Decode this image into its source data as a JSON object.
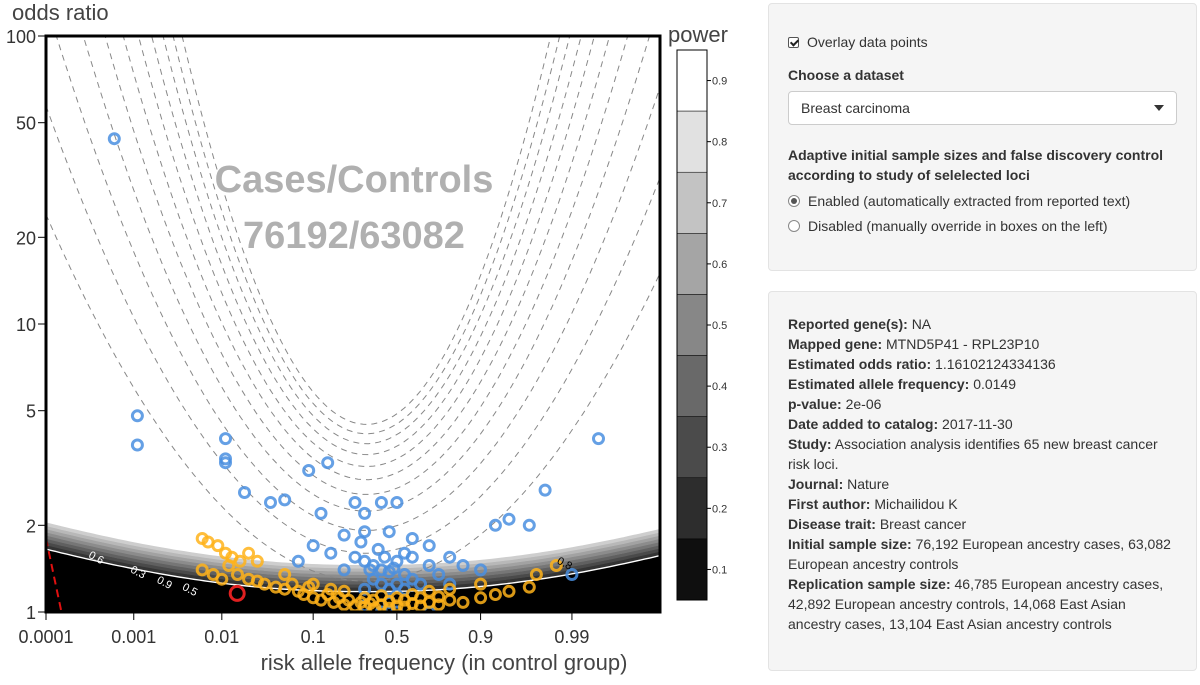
{
  "plot": {
    "ylabel": "odds ratio",
    "xlabel": "risk allele frequency (in control group)",
    "legend_title": "power",
    "overlay_line1": "Cases/Controls",
    "overlay_line2": "76192/63082",
    "y_ticks": [
      "100",
      "50",
      "20",
      "10",
      "5",
      "2",
      "1"
    ],
    "x_ticks": [
      "0.0001",
      "0.001",
      "0.01",
      "0.1",
      "0.5",
      "0.9",
      "0.99"
    ],
    "legend_ticks": [
      "0.9",
      "0.8",
      "0.7",
      "0.6",
      "0.5",
      "0.4",
      "0.3",
      "0.2",
      "0.1"
    ],
    "contour_labels": [
      "0.6",
      "0.3",
      "0.9",
      "0.5",
      "0.8"
    ],
    "colors": {
      "low_power": "#000000",
      "high_power": "#ffffff",
      "points_blue": "#4a8fe0",
      "points_orange": "#ffb31a",
      "highlight": "#e02020",
      "threshold": "#e01010"
    }
  },
  "chart_data": {
    "type": "scatter",
    "title": "",
    "xlabel": "risk allele frequency (in control group)",
    "ylabel": "odds ratio",
    "x_scale": "logit",
    "y_scale": "log",
    "xlim": [
      0.0001,
      0.999
    ],
    "ylim": [
      1,
      100
    ],
    "legend": "power (grayscale, right)",
    "highlight_point": {
      "x": 0.0149,
      "y": 1.161
    },
    "series": [
      {
        "name": "",
        "color": "#4a8fe0",
        "points": [
          [
            0.0006,
            44
          ],
          [
            0.0011,
            4.8
          ],
          [
            0.0011,
            3.8
          ],
          [
            0.011,
            4.0
          ],
          [
            0.011,
            3.4
          ],
          [
            0.011,
            3.3
          ],
          [
            0.018,
            2.6
          ],
          [
            0.035,
            2.4
          ],
          [
            0.05,
            2.45
          ],
          [
            0.09,
            3.1
          ],
          [
            0.14,
            3.3
          ],
          [
            0.25,
            2.4
          ],
          [
            0.4,
            2.4
          ],
          [
            0.5,
            2.4
          ],
          [
            0.3,
            2.2
          ],
          [
            0.12,
            2.2
          ],
          [
            0.2,
            1.85
          ],
          [
            0.3,
            1.9
          ],
          [
            0.45,
            1.9
          ],
          [
            0.6,
            1.8
          ],
          [
            0.7,
            1.7
          ],
          [
            0.8,
            1.55
          ],
          [
            0.85,
            1.45
          ],
          [
            0.9,
            1.4
          ],
          [
            0.93,
            2.0
          ],
          [
            0.95,
            2.1
          ],
          [
            0.97,
            2.0
          ],
          [
            0.995,
            4.0
          ],
          [
            0.98,
            2.65
          ],
          [
            0.99,
            1.35
          ],
          [
            0.25,
            1.55
          ],
          [
            0.3,
            1.5
          ],
          [
            0.35,
            1.45
          ],
          [
            0.4,
            1.4
          ],
          [
            0.45,
            1.38
          ],
          [
            0.5,
            1.5
          ],
          [
            0.55,
            1.35
          ],
          [
            0.6,
            1.3
          ],
          [
            0.65,
            1.25
          ],
          [
            0.35,
            1.3
          ],
          [
            0.4,
            1.25
          ],
          [
            0.45,
            1.2
          ],
          [
            0.5,
            1.25
          ],
          [
            0.55,
            1.2
          ],
          [
            0.3,
            1.2
          ],
          [
            0.2,
            1.4
          ],
          [
            0.15,
            1.6
          ],
          [
            0.1,
            1.7
          ],
          [
            0.07,
            1.5
          ],
          [
            0.6,
            1.55
          ],
          [
            0.7,
            1.45
          ],
          [
            0.75,
            1.35
          ],
          [
            0.8,
            1.25
          ],
          [
            0.4,
            1.0
          ],
          [
            0.5,
            1.0
          ],
          [
            0.7,
            1.0
          ],
          [
            0.3,
            1.05
          ],
          [
            0.45,
            1.08
          ],
          [
            0.55,
            1.6
          ],
          [
            0.38,
            1.65
          ],
          [
            0.28,
            1.75
          ],
          [
            0.42,
            1.55
          ],
          [
            0.48,
            1.42
          ],
          [
            0.33,
            1.4
          ]
        ]
      },
      {
        "name": "",
        "color": "#ffb31a",
        "points": [
          [
            0.006,
            1.8
          ],
          [
            0.007,
            1.75
          ],
          [
            0.009,
            1.7
          ],
          [
            0.011,
            1.6
          ],
          [
            0.013,
            1.55
          ],
          [
            0.016,
            1.5
          ],
          [
            0.02,
            1.6
          ],
          [
            0.025,
            1.5
          ],
          [
            0.006,
            1.4
          ],
          [
            0.008,
            1.35
          ],
          [
            0.01,
            1.3
          ],
          [
            0.012,
            1.45
          ],
          [
            0.015,
            1.35
          ],
          [
            0.02,
            1.3
          ],
          [
            0.025,
            1.28
          ],
          [
            0.03,
            1.25
          ],
          [
            0.04,
            1.22
          ],
          [
            0.05,
            1.2
          ],
          [
            0.06,
            1.25
          ],
          [
            0.07,
            1.18
          ],
          [
            0.08,
            1.15
          ],
          [
            0.09,
            1.22
          ],
          [
            0.1,
            1.12
          ],
          [
            0.12,
            1.1
          ],
          [
            0.14,
            1.15
          ],
          [
            0.16,
            1.08
          ],
          [
            0.18,
            1.12
          ],
          [
            0.2,
            1.06
          ],
          [
            0.22,
            1.1
          ],
          [
            0.25,
            1.05
          ],
          [
            0.28,
            1.08
          ],
          [
            0.3,
            1.04
          ],
          [
            0.33,
            1.07
          ],
          [
            0.36,
            1.03
          ],
          [
            0.4,
            1.06
          ],
          [
            0.45,
            1.03
          ],
          [
            0.5,
            1.05
          ],
          [
            0.55,
            1.04
          ],
          [
            0.6,
            1.07
          ],
          [
            0.65,
            1.05
          ],
          [
            0.7,
            1.08
          ],
          [
            0.75,
            1.06
          ],
          [
            0.8,
            1.1
          ],
          [
            0.85,
            1.08
          ],
          [
            0.9,
            1.12
          ],
          [
            0.93,
            1.15
          ],
          [
            0.95,
            1.18
          ],
          [
            0.97,
            1.22
          ],
          [
            0.975,
            1.35
          ],
          [
            0.985,
            1.45
          ],
          [
            0.9,
            1.25
          ],
          [
            0.8,
            1.2
          ],
          [
            0.7,
            1.18
          ],
          [
            0.6,
            1.15
          ],
          [
            0.5,
            1.12
          ],
          [
            0.4,
            1.14
          ],
          [
            0.3,
            1.12
          ],
          [
            0.2,
            1.18
          ],
          [
            0.1,
            1.25
          ],
          [
            0.05,
            1.35
          ],
          [
            0.15,
            1.2
          ],
          [
            0.35,
            1.1
          ],
          [
            0.45,
            1.09
          ],
          [
            0.55,
            1.1
          ],
          [
            0.65,
            1.12
          ],
          [
            0.75,
            1.13
          ]
        ]
      }
    ]
  },
  "controls": {
    "overlay_label": "Overlay data points",
    "dataset_label": "Choose a dataset",
    "dataset_value": "Breast carcinoma",
    "adaptive_label": "Adaptive initial sample sizes and false discovery control according to study of selelected loci",
    "radio_enabled": "Enabled (automatically extracted from reported text)",
    "radio_disabled": "Disabled (manually override in boxes on the left)"
  },
  "details": {
    "reported_genes_k": "Reported gene(s):",
    "reported_genes_v": "NA",
    "mapped_gene_k": "Mapped gene:",
    "mapped_gene_v": "MTND5P41 - RPL23P10",
    "odds_k": "Estimated odds ratio:",
    "odds_v": "1.16102124334136",
    "freq_k": "Estimated allele frequency:",
    "freq_v": "0.0149",
    "p_k": "p-value:",
    "p_v": "2e-06",
    "date_k": "Date added to catalog:",
    "date_v": "2017-11-30",
    "study_k": "Study:",
    "study_v": "Association analysis identifies 65 new breast cancer risk loci.",
    "journal_k": "Journal:",
    "journal_v": "Nature",
    "author_k": "First author:",
    "author_v": "Michailidou K",
    "trait_k": "Disease trait:",
    "trait_v": "Breast cancer",
    "initial_k": "Initial sample size:",
    "initial_v": "76,192 European ancestry cases, 63,082 European ancestry controls",
    "replication_k": "Replication sample size:",
    "replication_v": "46,785 European ancestry cases, 42,892 European ancestry controls, 14,068 East Asian ancestry cases, 13,104 East Asian ancestry controls"
  }
}
